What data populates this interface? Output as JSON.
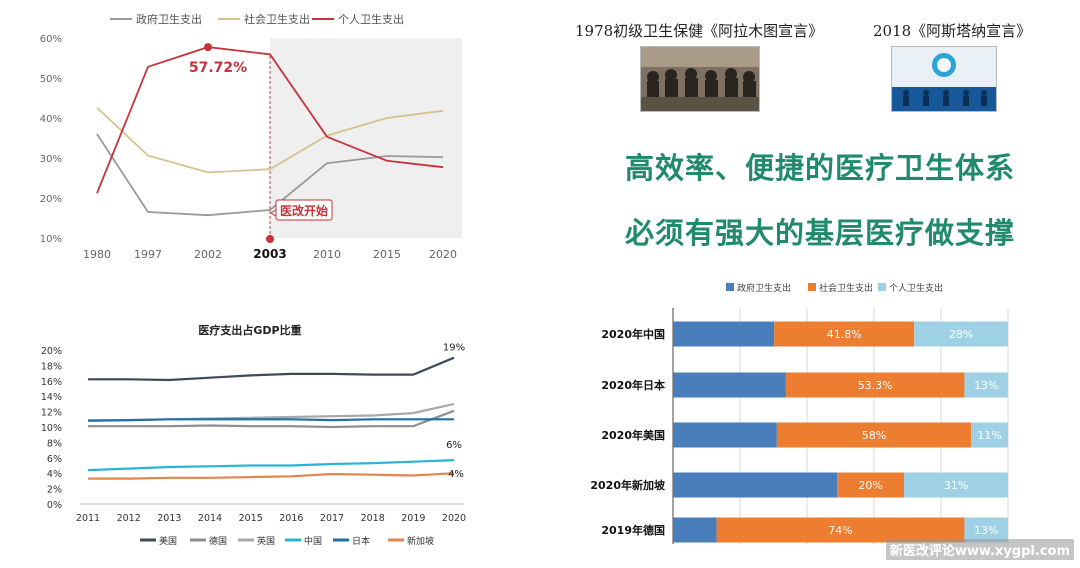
{
  "chart_data": [
    {
      "type": "line",
      "legend": [
        "政府卫生支出",
        "社会卫生支出",
        "个人卫生支出"
      ],
      "categories": [
        "1980",
        "1997",
        "2002",
        "2003",
        "2010",
        "2015",
        "2020"
      ],
      "series": [
        {
          "name": "政府卫生支出",
          "color": "#9a9a9a",
          "values": [
            36,
            16.5,
            15.7,
            17,
            28.7,
            30.5,
            30.2
          ]
        },
        {
          "name": "社会卫生支出",
          "color": "#d4c38f",
          "values": [
            42.6,
            30.6,
            26.4,
            27.2,
            35.6,
            40,
            41.8
          ]
        },
        {
          "name": "个人卫生支出",
          "color": "#c8323a",
          "values": [
            21.2,
            52.8,
            57.72,
            55.9,
            35.3,
            29.3,
            27.7
          ]
        }
      ],
      "yticks": [
        "60%",
        "50%",
        "40%",
        "30%",
        "20%",
        "10%"
      ],
      "ylim": [
        10,
        60
      ],
      "peak_label": "57.72%",
      "highlight_x": "2003",
      "callout": "医改开始",
      "shaded_region": [
        "2003",
        "2020"
      ]
    },
    {
      "type": "line",
      "title": "医疗支出占GDP比重",
      "categories": [
        "2011",
        "2012",
        "2013",
        "2014",
        "2015",
        "2016",
        "2017",
        "2018",
        "2019",
        "2020"
      ],
      "yticks": [
        "20%",
        "18%",
        "16%",
        "14%",
        "12%",
        "10%",
        "8%",
        "6%",
        "4%",
        "2%",
        "0%"
      ],
      "ylim": [
        0,
        20
      ],
      "series": [
        {
          "name": "美国",
          "color": "#3c4a5a",
          "values": [
            16.2,
            16.2,
            16.1,
            16.4,
            16.7,
            16.9,
            16.9,
            16.8,
            16.8,
            19
          ]
        },
        {
          "name": "德国",
          "color": "#8e8e8e",
          "values": [
            10.1,
            10.1,
            10.1,
            10.2,
            10.1,
            10.1,
            10.0,
            10.1,
            10.1,
            12.1
          ]
        },
        {
          "name": "英国",
          "color": "#a8a8a8",
          "values": [
            10.9,
            10.9,
            11.0,
            11.1,
            11.2,
            11.3,
            11.4,
            11.5,
            11.8,
            13
          ]
        },
        {
          "name": "中国",
          "color": "#2ab3d9",
          "values": [
            4.4,
            4.6,
            4.8,
            4.9,
            5.0,
            5.0,
            5.2,
            5.3,
            5.5,
            5.7
          ]
        },
        {
          "name": "日本",
          "color": "#1f6fa8",
          "values": [
            10.8,
            10.9,
            11.0,
            11.0,
            11.0,
            11.0,
            10.9,
            11.0,
            11.0,
            11.0
          ]
        },
        {
          "name": "新加坡",
          "color": "#e4854c",
          "values": [
            3.3,
            3.3,
            3.4,
            3.4,
            3.5,
            3.6,
            3.9,
            3.8,
            3.7,
            4
          ]
        }
      ],
      "end_labels": [
        "19%",
        "6%",
        "4%"
      ]
    },
    {
      "type": "bar",
      "orientation": "horizontal-stacked",
      "legend": [
        "政府卫生支出",
        "社会卫生支出",
        "个人卫生支出"
      ],
      "categories": [
        "2020年中国",
        "2020年日本",
        "2020年美国",
        "2020年新加坡",
        "2019年德国"
      ],
      "series": [
        {
          "name": "政府卫生支出",
          "color": "#4a7dbb",
          "values": [
            30.2,
            33.7,
            31,
            49,
            13
          ]
        },
        {
          "name": "社会卫生支出",
          "color": "#ed7d31",
          "values": [
            41.8,
            53.3,
            58,
            20,
            74
          ]
        },
        {
          "name": "个人卫生支出",
          "color": "#9fd1e6",
          "values": [
            28,
            13,
            11,
            31,
            13
          ]
        }
      ],
      "labels": [
        [
          "",
          "41.8%",
          "28%"
        ],
        [
          "",
          "53.3%",
          "13%"
        ],
        [
          "",
          "58%",
          "11%"
        ],
        [
          "",
          "20%",
          "31%"
        ],
        [
          "",
          "74%",
          "13%"
        ]
      ]
    }
  ],
  "declarations": {
    "left_label": "1978初级卫生保健《阿拉木图宣言》",
    "right_label": "2018《阿斯塔纳宣言》"
  },
  "slogans": [
    "高效率、便捷的医疗卫生体系",
    "必须有强大的基层医疗做支撑"
  ],
  "watermark": "新医改评论www.xygpl.com"
}
